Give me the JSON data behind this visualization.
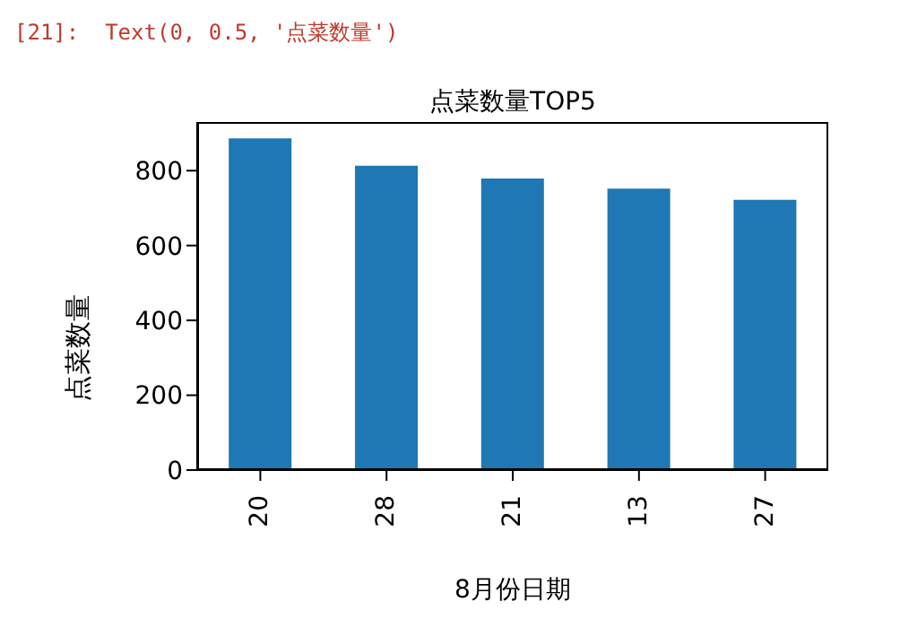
{
  "chart_data": {
    "type": "bar",
    "title": "点菜数量TOP5",
    "xlabel": "8月份日期",
    "ylabel": "点菜数量",
    "annotations": [
      "[21]:  Text(0, 0.5, '点菜数量')"
    ],
    "categories": [
      "20",
      "28",
      "21",
      "13",
      "27"
    ],
    "values": [
      886,
      813,
      779,
      752,
      722
    ],
    "color": "#1f77b4",
    "ylim": [
      0,
      930
    ],
    "yticks": [
      0,
      200,
      400,
      600,
      800
    ],
    "grid": false
  }
}
